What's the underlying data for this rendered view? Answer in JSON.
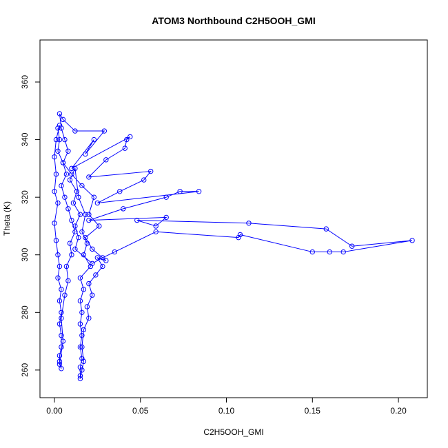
{
  "chart_data": {
    "type": "line",
    "title": "ATOM3 Northbound C2H5OOH_GMI",
    "xlabel": "C2H5OOH_GMI",
    "ylabel": "Theta (K)",
    "x": [
      0.003,
      0.001,
      0,
      0.001,
      0,
      0.002,
      0,
      0.001,
      0.002,
      0.003,
      0.002,
      0.004,
      0.003,
      0.004,
      0.003,
      0.004,
      0.004,
      0.003,
      0.003,
      0.004,
      0.003,
      0.005,
      0.004,
      0.006,
      0.008,
      0.007,
      0.01,
      0.009,
      0.012,
      0.01,
      0.008,
      0.006,
      0.004,
      0.007,
      0.005,
      0.008,
      0.006,
      0.004,
      0.003,
      0.005,
      0.012,
      0.029,
      0.018,
      0.023,
      0.01,
      0.044,
      0.042,
      0.041,
      0.03,
      0.02,
      0.056,
      0.052,
      0.038,
      0.025,
      0.084,
      0.073,
      0.065,
      0.04,
      0.02,
      0.065,
      0.059,
      0.048,
      0.113,
      0.158,
      0.173,
      0.208,
      0.168,
      0.16,
      0.15,
      0.108,
      0.107,
      0.059,
      0.035,
      0.028,
      0.022,
      0.012,
      0.014,
      0.012,
      0.015,
      0.011,
      0.013,
      0.009,
      0.012,
      0.014,
      0.018,
      0.016,
      0.019,
      0.017,
      0.021,
      0.015,
      0.017,
      0.015,
      0.016,
      0.015,
      0.016,
      0.015,
      0.016,
      0.015,
      0.015,
      0.015,
      0.016,
      0.017,
      0.016,
      0.017,
      0.02,
      0.019,
      0.022,
      0.02,
      0.024,
      0.028,
      0.025,
      0.03,
      0.022,
      0.018,
      0.026,
      0.02,
      0.023,
      0.016,
      0.01,
      0.005,
      0.002,
      0.003,
      0.002
    ],
    "series": [
      {
        "name": "C2H5OOH_GMI",
        "color": "#0000ff",
        "values": [
          345,
          340,
          334,
          328,
          322,
          318,
          311,
          305,
          300,
          296,
          292,
          288,
          284,
          280,
          276,
          272,
          268,
          265,
          263,
          260.5,
          262,
          270,
          278,
          286,
          291,
          296,
          300,
          304,
          308,
          312,
          316,
          320,
          324,
          328,
          332,
          336,
          340,
          344,
          349,
          347,
          343,
          343,
          335,
          340,
          330,
          341,
          340,
          337,
          333,
          327,
          329,
          326,
          322,
          318,
          322,
          322,
          320,
          316,
          312,
          313,
          310,
          312,
          311,
          309,
          303,
          305,
          301,
          301,
          301,
          307,
          306,
          308,
          301,
          299,
          297,
          302,
          306,
          310,
          314,
          318,
          322,
          326,
          330,
          320,
          314,
          308,
          304,
          300,
          296,
          292,
          288,
          284,
          280,
          276,
          272,
          268,
          264,
          261,
          258,
          257,
          260,
          263,
          268,
          274,
          278,
          282,
          286,
          290,
          293,
          296,
          299,
          298,
          302,
          306,
          310,
          314,
          320,
          324,
          328,
          332,
          336,
          340,
          344
        ]
      }
    ],
    "markers": true,
    "legend": false,
    "xlim": [
      -0.0084,
      0.2168
    ],
    "xticks": [
      {
        "value": 0,
        "label": "0.00"
      },
      0.05,
      {
        "value": 0.1,
        "label": "0.10"
      },
      0.15,
      {
        "value": 0.2,
        "label": "0.20"
      }
    ],
    "ylim": [
      250.4,
      374.6
    ],
    "yticks": [
      260,
      280,
      300,
      320,
      340,
      360
    ]
  }
}
